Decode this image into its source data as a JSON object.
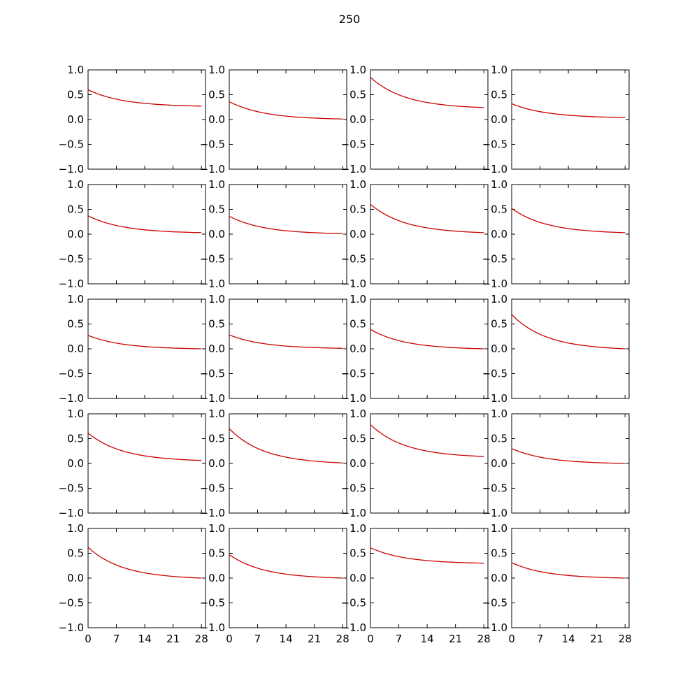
{
  "figure": {
    "title": "250"
  },
  "style": {
    "line_color": "#cc0000",
    "axis_color": "#000000",
    "background": "#ffffff"
  },
  "chart_data": {
    "type": "line",
    "grid": false,
    "layout": {
      "rows": 5,
      "cols": 4
    },
    "x": [
      0,
      1,
      2,
      3,
      4,
      5,
      6,
      7,
      8,
      9,
      10,
      11,
      12,
      13,
      14,
      15,
      16,
      17,
      18,
      19,
      20,
      21,
      22,
      23,
      24,
      25,
      26,
      27,
      28,
      29
    ],
    "xlim": [
      0,
      29
    ],
    "ylim": [
      -1.0,
      1.0
    ],
    "xticks": [
      "0",
      "7",
      "14",
      "21",
      "28"
    ],
    "xtick_values": [
      0,
      7,
      14,
      21,
      28
    ],
    "yticks": [
      "−1.0",
      "−0.5",
      "0.0",
      "0.5",
      "1.0"
    ],
    "ytick_values": [
      -1.0,
      -0.5,
      0.0,
      0.5,
      1.0
    ],
    "panels": [
      {
        "start": 0.6,
        "end": 0.27
      },
      {
        "start": 0.36,
        "end": 0.01
      },
      {
        "start": 0.85,
        "end": 0.24
      },
      {
        "start": 0.32,
        "end": 0.04
      },
      {
        "start": 0.37,
        "end": 0.03
      },
      {
        "start": 0.36,
        "end": 0.01
      },
      {
        "start": 0.6,
        "end": 0.03
      },
      {
        "start": 0.52,
        "end": 0.03
      },
      {
        "start": 0.27,
        "end": 0.0
      },
      {
        "start": 0.28,
        "end": 0.01
      },
      {
        "start": 0.39,
        "end": 0.0
      },
      {
        "start": 0.69,
        "end": 0.0
      },
      {
        "start": 0.61,
        "end": 0.06
      },
      {
        "start": 0.7,
        "end": 0.01
      },
      {
        "start": 0.78,
        "end": 0.14
      },
      {
        "start": 0.3,
        "end": 0.0
      },
      {
        "start": 0.62,
        "end": 0.0
      },
      {
        "start": 0.47,
        "end": 0.0
      },
      {
        "start": 0.61,
        "end": 0.3
      },
      {
        "start": 0.31,
        "end": 0.0
      }
    ]
  }
}
